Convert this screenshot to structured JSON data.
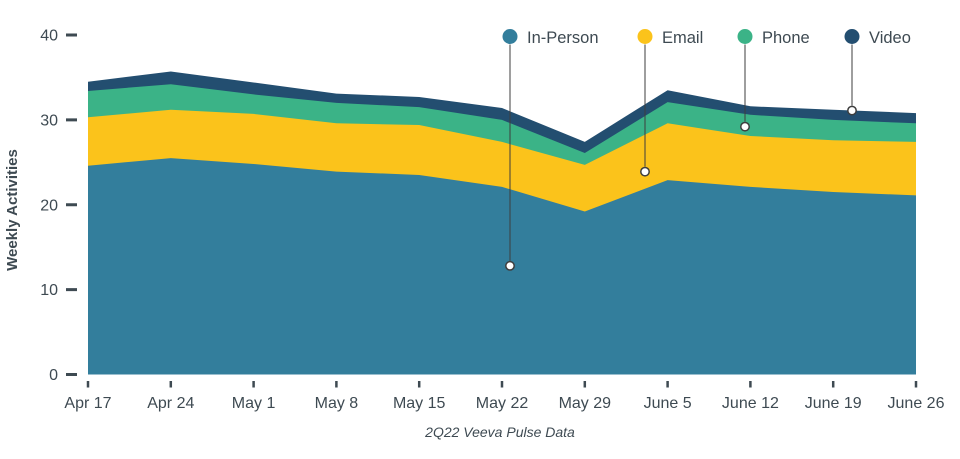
{
  "chart_data": {
    "type": "area",
    "stacked": true,
    "title": "",
    "xlabel": "",
    "ylabel": "Weekly Activities",
    "caption": "2Q22 Veeva Pulse Data",
    "ylim": [
      0,
      40
    ],
    "yticks": [
      0,
      10,
      20,
      30,
      40
    ],
    "grid": false,
    "legend_position": "top-right",
    "text_color": "#3E4A52",
    "callout_line_color": "#3E3E3E",
    "categories": [
      "Apr 17",
      "Apr 24",
      "May 1",
      "May 8",
      "May 15",
      "May 22",
      "May 29",
      "June 5",
      "June 12",
      "June 19",
      "June 26"
    ],
    "series": [
      {
        "name": "In-Person",
        "color": "#337E9C",
        "callout_value": 12.8,
        "values": [
          24.6,
          25.5,
          24.8,
          23.9,
          23.5,
          22.1,
          19.2,
          22.9,
          22.1,
          21.5,
          21.1
        ]
      },
      {
        "name": "Email",
        "color": "#FBC31B",
        "callout_value": 23.9,
        "values": [
          5.7,
          5.7,
          5.9,
          5.7,
          5.9,
          5.3,
          5.5,
          6.7,
          6.0,
          6.1,
          6.3
        ]
      },
      {
        "name": "Phone",
        "color": "#3BB387",
        "callout_value": 29.2,
        "values": [
          3.1,
          3.0,
          2.3,
          2.4,
          2.1,
          2.6,
          1.4,
          2.5,
          2.5,
          2.4,
          2.2
        ]
      },
      {
        "name": "Video",
        "color": "#234E70",
        "callout_value": 31.1,
        "values": [
          1.1,
          1.5,
          1.4,
          1.1,
          1.2,
          1.4,
          1.3,
          1.4,
          1.0,
          1.2,
          1.2
        ]
      }
    ]
  }
}
